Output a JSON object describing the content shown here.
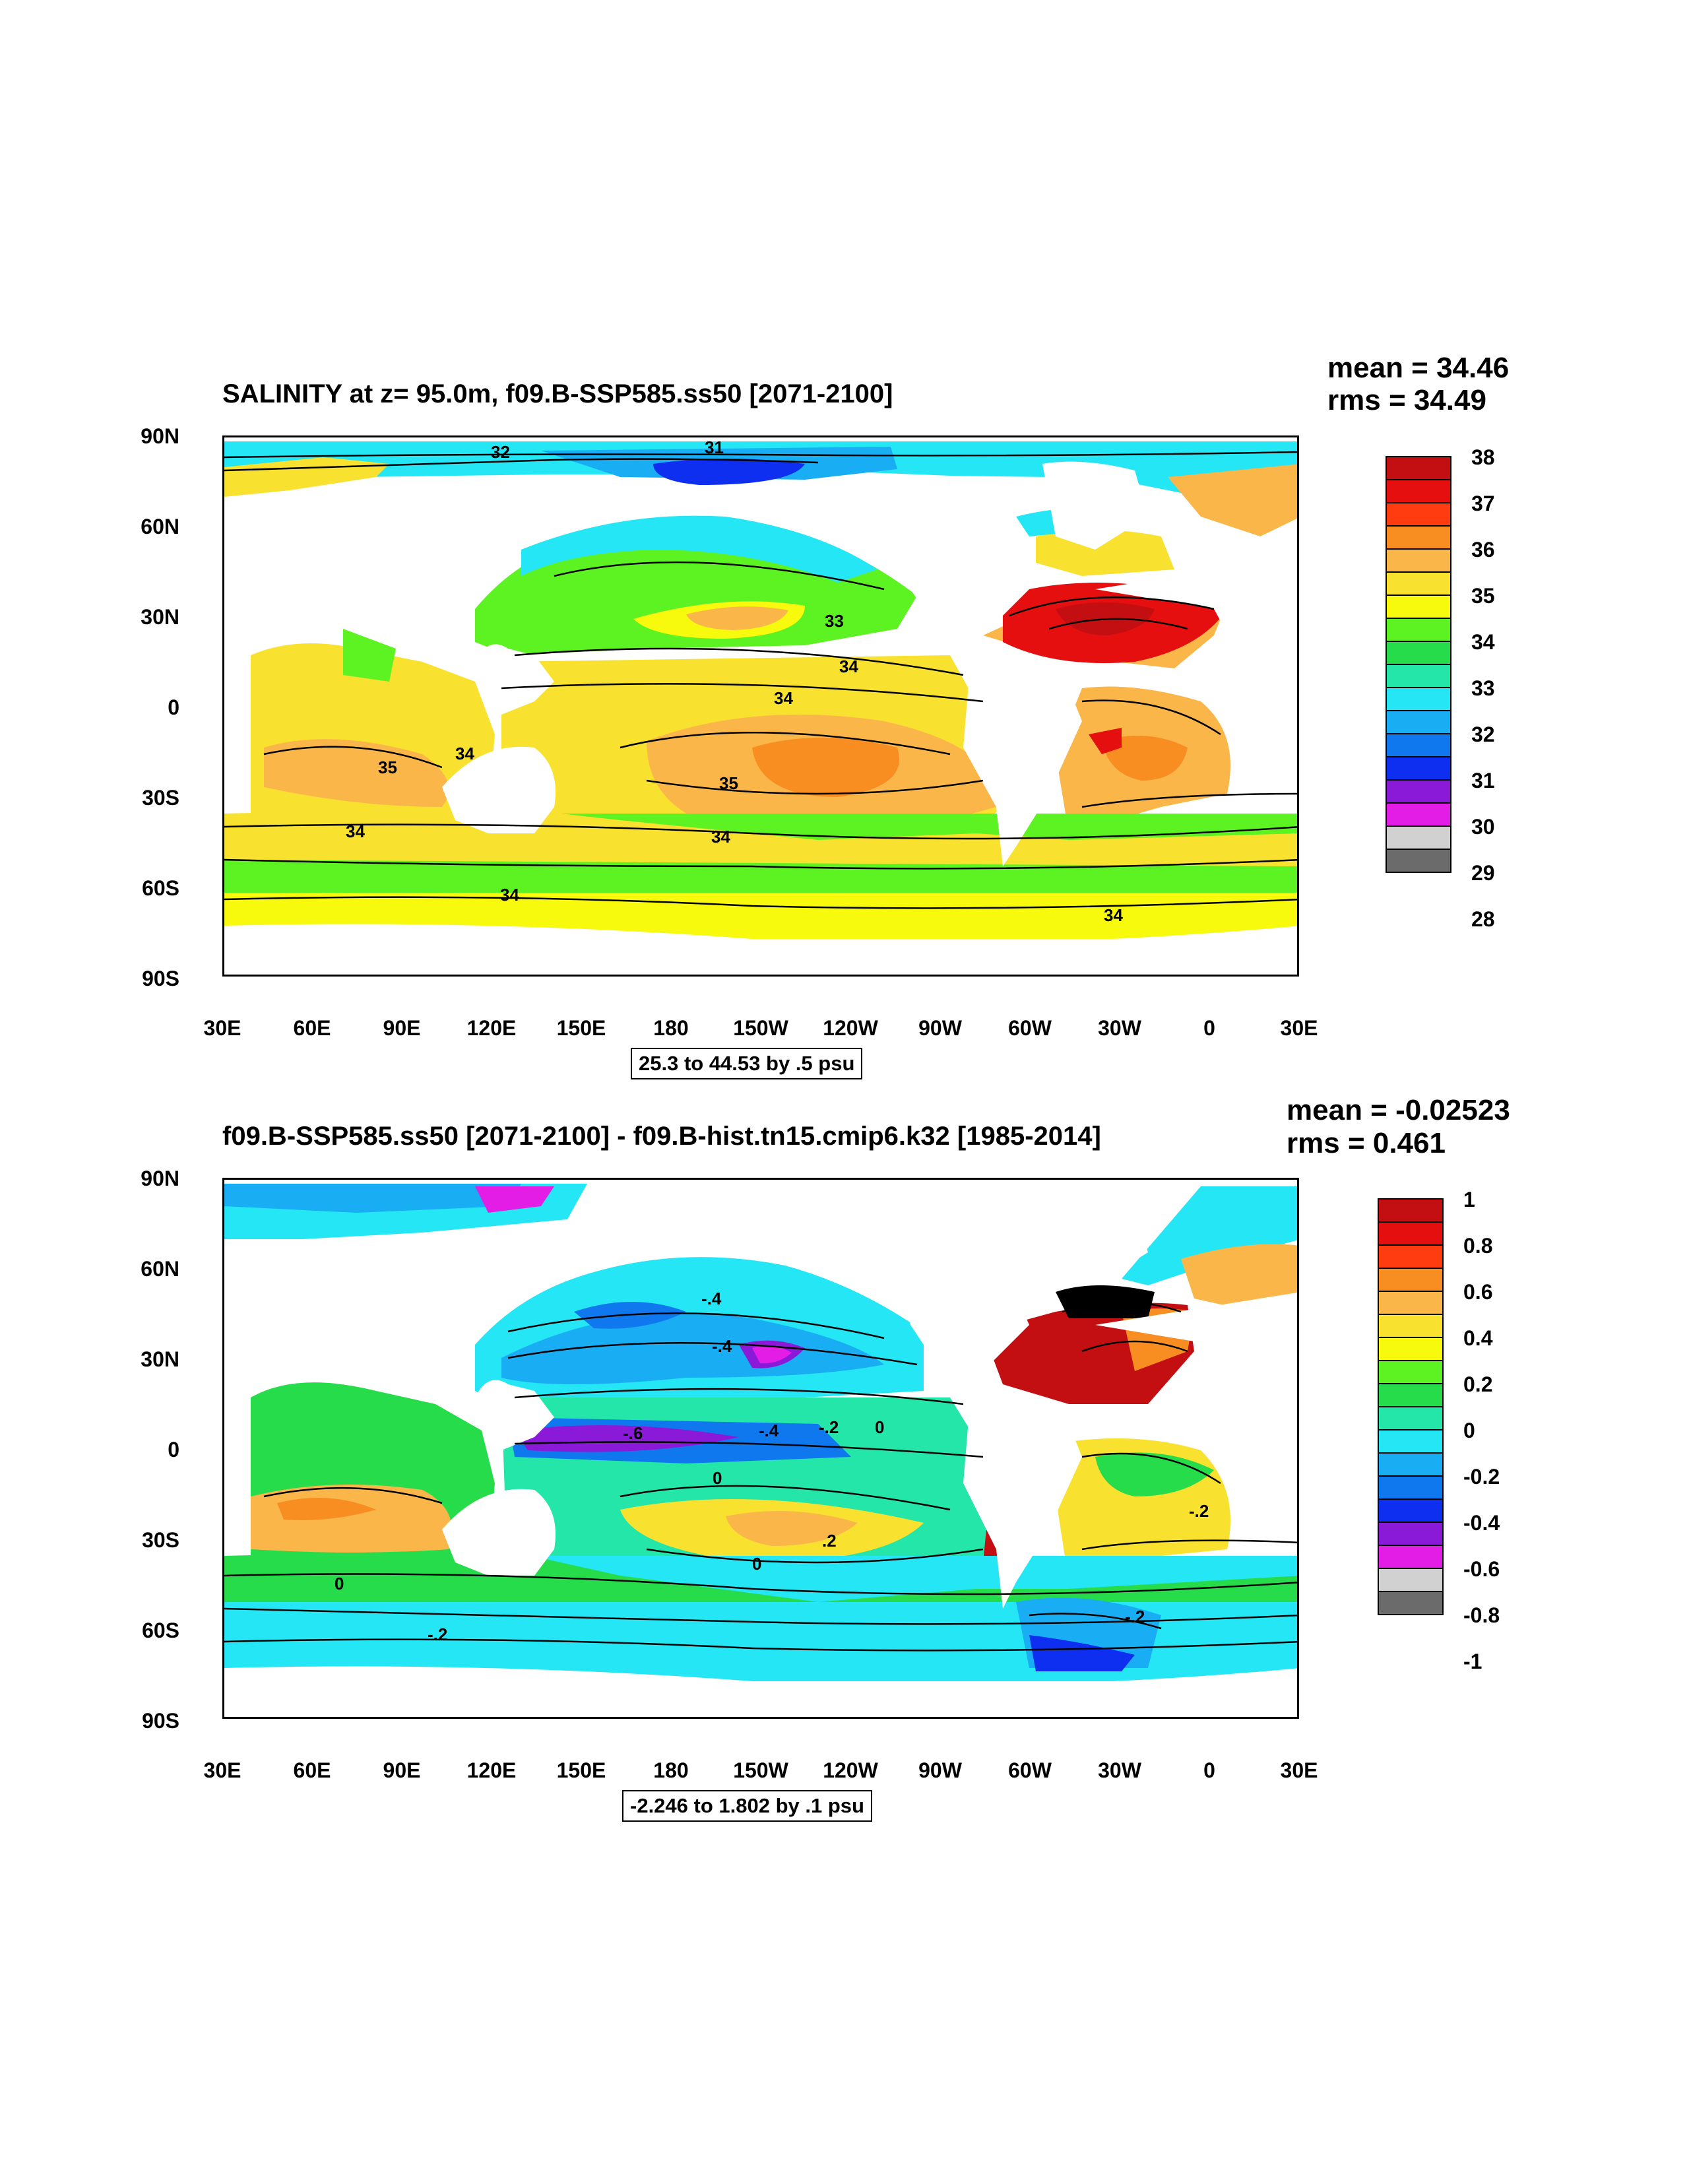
{
  "panels": [
    {
      "title": "SALINITY at z=  95.0m, f09.B-SSP585.ss50 [2071-2100]",
      "mean": "mean = 34.46",
      "rms": "rms = 34.49",
      "range": "25.3 to 44.53 by .5 psu",
      "lat_labels": [
        "90N",
        "60N",
        "30N",
        "0",
        "30S",
        "60S",
        "90S"
      ],
      "lon_labels": [
        "30E",
        "60E",
        "90E",
        "120E",
        "150E",
        "180",
        "150W",
        "120W",
        "90W",
        "60W",
        "30W",
        "0",
        "30E"
      ],
      "colorbar": {
        "labels": [
          "38",
          "37",
          "36",
          "35",
          "34",
          "33",
          "32",
          "31",
          "30",
          "29",
          "28"
        ],
        "colors": [
          "#c40f12",
          "#e50f0f",
          "#ff3c10",
          "#f88d22",
          "#fbb64a",
          "#f9e12f",
          "#f8fa0d",
          "#5df222",
          "#26dc4a",
          "#23e6a8",
          "#25e6f4",
          "#19aef3",
          "#0f78ee",
          "#0f2ff0",
          "#8a1ad8",
          "#e41de6",
          "#d1d1d1",
          "#6b6b6b"
        ]
      },
      "contour_labels": [
        "32",
        "31",
        "33",
        "34",
        "34",
        "35",
        "35",
        "34",
        "34",
        "34",
        "34",
        "34"
      ]
    },
    {
      "title": "f09.B-SSP585.ss50 [2071-2100] - f09.B-hist.tn15.cmip6.k32 [1985-2014]",
      "mean": "mean = -0.02523",
      "rms": "rms = 0.461",
      "range": "-2.246 to 1.802 by .1 psu",
      "lat_labels": [
        "90N",
        "60N",
        "30N",
        "0",
        "30S",
        "60S",
        "90S"
      ],
      "lon_labels": [
        "30E",
        "60E",
        "90E",
        "120E",
        "150E",
        "180",
        "150W",
        "120W",
        "90W",
        "60W",
        "30W",
        "0",
        "30E"
      ],
      "colorbar": {
        "labels": [
          "1",
          "0.8",
          "0.6",
          "0.4",
          "0.2",
          "0",
          "-0.2",
          "-0.4",
          "-0.6",
          "-0.8",
          "-1"
        ],
        "colors": [
          "#c40f12",
          "#e50f0f",
          "#ff3c10",
          "#f88d22",
          "#fbb64a",
          "#f9e12f",
          "#f8fa0d",
          "#5df222",
          "#26dc4a",
          "#23e6a8",
          "#25e6f4",
          "#19aef3",
          "#0f78ee",
          "#0f2ff0",
          "#8a1ad8",
          "#e41de6",
          "#d1d1d1",
          "#6b6b6b"
        ]
      },
      "contour_labels": [
        "-.4",
        "-.4",
        "-.6",
        "-.4",
        "-.2",
        "0",
        "0",
        "0",
        "0",
        "-.2",
        "-.2",
        "-.2",
        ".2"
      ]
    }
  ]
}
